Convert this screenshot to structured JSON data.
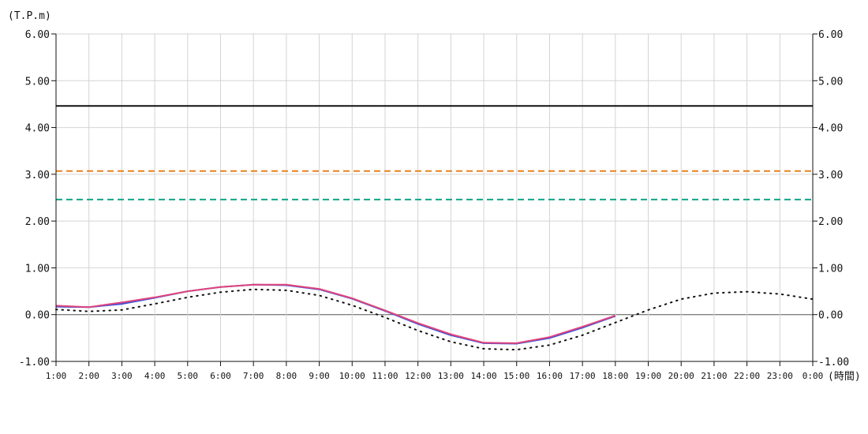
{
  "chart_data": {
    "type": "line",
    "y_unit_label": "(T.P.m)",
    "x_unit_label": "(時間)",
    "ylim": [
      -1.0,
      6.0
    ],
    "y_ticks": [
      "6.00",
      "5.00",
      "4.00",
      "3.00",
      "2.00",
      "1.00",
      "0.00",
      "-1.00"
    ],
    "y_tick_values": [
      6,
      5,
      4,
      3,
      2,
      1,
      0,
      -1
    ],
    "x": [
      "1:00",
      "2:00",
      "3:00",
      "4:00",
      "5:00",
      "6:00",
      "7:00",
      "8:00",
      "9:00",
      "10:00",
      "11:00",
      "12:00",
      "13:00",
      "14:00",
      "15:00",
      "16:00",
      "17:00",
      "18:00",
      "19:00",
      "20:00",
      "21:00",
      "22:00",
      "23:00",
      "0:00"
    ],
    "grid": true,
    "reference_lines": [
      {
        "value": 4.46,
        "color": "#111111",
        "style": "solid"
      },
      {
        "value": 3.07,
        "color": "#e8821e",
        "style": "dashed"
      },
      {
        "value": 2.46,
        "color": "#12a58a",
        "style": "dashed"
      }
    ],
    "series": [
      {
        "style": "dotted",
        "color": "#111111",
        "values": [
          0.11,
          0.07,
          0.1,
          0.23,
          0.37,
          0.48,
          0.54,
          0.52,
          0.41,
          0.2,
          -0.06,
          -0.34,
          -0.58,
          -0.73,
          -0.75,
          -0.65,
          -0.44,
          -0.17,
          0.1,
          0.33,
          0.46,
          0.49,
          0.44,
          0.33
        ]
      },
      {
        "style": "solid",
        "color": "#3a4fd8",
        "values": [
          0.17,
          0.16,
          0.23,
          0.36,
          0.5,
          0.59,
          0.64,
          0.63,
          0.54,
          0.34,
          0.08,
          -0.2,
          -0.44,
          -0.61,
          -0.62,
          -0.5,
          -0.28,
          -0.03,
          null,
          null,
          null,
          null,
          null,
          null
        ]
      },
      {
        "style": "solid",
        "color": "#e0457c",
        "values": [
          0.19,
          0.16,
          0.26,
          0.37,
          0.5,
          0.59,
          0.64,
          0.64,
          0.55,
          0.35,
          0.09,
          -0.18,
          -0.42,
          -0.6,
          -0.61,
          -0.48,
          -0.26,
          -0.02,
          null,
          null,
          null,
          null,
          null,
          null
        ]
      }
    ]
  }
}
